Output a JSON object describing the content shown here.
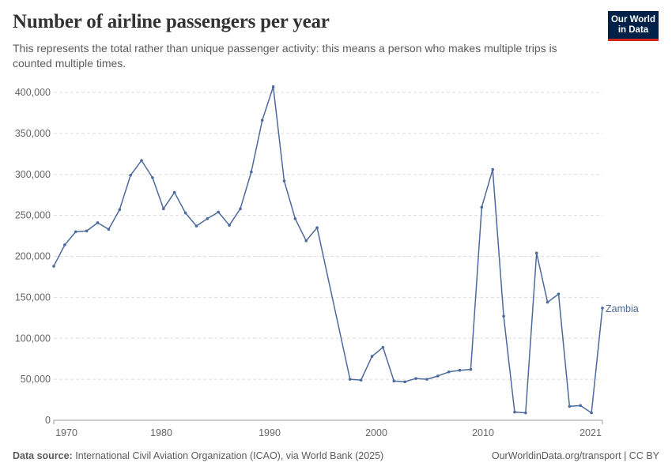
{
  "header": {
    "title": "Number of airline passengers per year",
    "subtitle": "This represents the total rather than unique passenger activity: this means a person who makes multiple trips is counted multiple times."
  },
  "logo": {
    "line1": "Our World",
    "line2": "in Data"
  },
  "footer": {
    "source_label": "Data source:",
    "source_text": "International Civil Aviation Organization (ICAO), via World Bank (2025)",
    "right_text": "OurWorldinData.org/transport | CC BY"
  },
  "colors": {
    "series": "#4c6a9c",
    "grid": "#dddddd",
    "axis_text": "#666666",
    "logo_bg": "#002147",
    "logo_accent": "#ce261e"
  },
  "chart_data": {
    "type": "line",
    "title": "Number of airline passengers per year",
    "xlabel": "",
    "ylabel": "",
    "xlim": [
      1970,
      2021
    ],
    "ylim": [
      0,
      400000
    ],
    "x_ticks": [
      1970,
      1980,
      1990,
      2000,
      2010,
      2021
    ],
    "y_ticks": [
      0,
      50000,
      100000,
      150000,
      200000,
      250000,
      300000,
      350000,
      400000
    ],
    "y_tick_labels": [
      "0",
      "50,000",
      "100,000",
      "150,000",
      "200,000",
      "250,000",
      "300,000",
      "350,000",
      "400,000"
    ],
    "grid": "horizontal dashed",
    "series": [
      {
        "name": "Zambia",
        "points": [
          [
            1970,
            188000
          ],
          [
            1971,
            214000
          ],
          [
            1972,
            230000
          ],
          [
            1973,
            231000
          ],
          [
            1974,
            241000
          ],
          [
            1975,
            233000
          ],
          [
            1976,
            257000
          ],
          [
            1977,
            299000
          ],
          [
            1978,
            317000
          ],
          [
            1979,
            296000
          ],
          [
            1980,
            258000
          ],
          [
            1981,
            278000
          ],
          [
            1982,
            253000
          ],
          [
            1983,
            237000
          ],
          [
            1984,
            246000
          ],
          [
            1985,
            254000
          ],
          [
            1986,
            238000
          ],
          [
            1987,
            258000
          ],
          [
            1988,
            303000
          ],
          [
            1989,
            366000
          ],
          [
            1990,
            407000
          ],
          [
            1991,
            292000
          ],
          [
            1992,
            246000
          ],
          [
            1993,
            219000
          ],
          [
            1994,
            235000
          ],
          [
            1997,
            50000
          ],
          [
            1998,
            49000
          ],
          [
            1999,
            78000
          ],
          [
            2000,
            89000
          ],
          [
            2001,
            48000
          ],
          [
            2002,
            47000
          ],
          [
            2003,
            51000
          ],
          [
            2004,
            50000
          ],
          [
            2005,
            54000
          ],
          [
            2006,
            59000
          ],
          [
            2007,
            61000
          ],
          [
            2008,
            62000
          ],
          [
            2009,
            260000
          ],
          [
            2010,
            306000
          ],
          [
            2011,
            127000
          ],
          [
            2012,
            10000
          ],
          [
            2013,
            9000
          ],
          [
            2014,
            204000
          ],
          [
            2015,
            144000
          ],
          [
            2016,
            154000
          ],
          [
            2017,
            17000
          ],
          [
            2018,
            18000
          ],
          [
            2019,
            9000
          ],
          [
            2020,
            137000
          ]
        ]
      }
    ]
  }
}
